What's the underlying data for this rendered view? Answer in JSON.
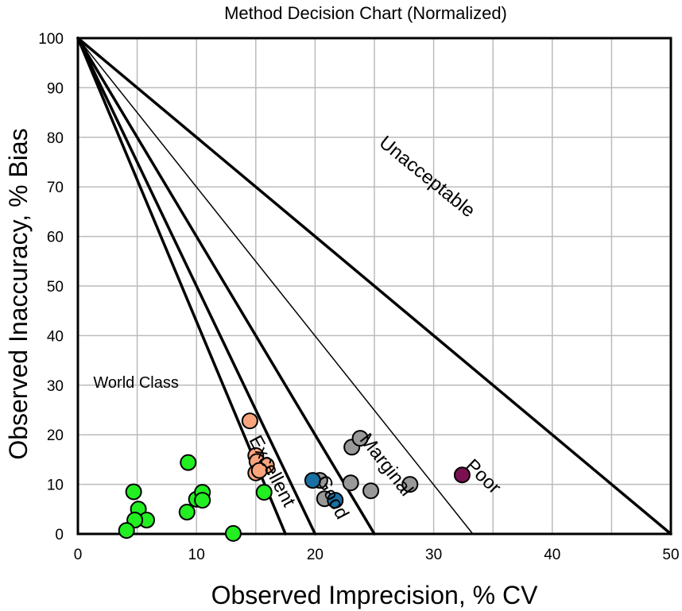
{
  "chart_data": {
    "type": "scatter",
    "title": "Method Decision Chart (Normalized)",
    "xlabel": "Observed Imprecision, % CV",
    "ylabel": "Observed Inaccuracy, % Bias",
    "xlim": [
      0,
      50
    ],
    "ylim": [
      0,
      100
    ],
    "x_ticks": [
      0,
      10,
      20,
      30,
      40,
      50
    ],
    "y_ticks": [
      0,
      10,
      20,
      30,
      40,
      50,
      60,
      70,
      80,
      90,
      100
    ],
    "x_grid_step": 5,
    "y_grid_step": 10,
    "grid": true,
    "boundary_lines": [
      {
        "label": "Excellent",
        "x_intercept": 17.5,
        "y_intercept": 100,
        "weight": "bold"
      },
      {
        "label": "Good",
        "x_intercept": 20,
        "y_intercept": 100,
        "weight": "bold"
      },
      {
        "label": "Marginal",
        "x_intercept": 25,
        "y_intercept": 100,
        "weight": "bold"
      },
      {
        "label": "Poor",
        "x_intercept": 33.3,
        "y_intercept": 100,
        "weight": "thin"
      },
      {
        "label": "Unacceptable",
        "x_intercept": 50,
        "y_intercept": 100,
        "weight": "bold"
      }
    ],
    "zone_labels": [
      {
        "text": "World Class",
        "x": 1.3,
        "y": 29.5,
        "angle": 0
      },
      {
        "text": "Excellent",
        "x": 14.4,
        "y": 19,
        "angle": 62
      },
      {
        "text": "Good",
        "x": 20.1,
        "y": 11,
        "angle": 62
      },
      {
        "text": "Marginal",
        "x": 23.7,
        "y": 19,
        "angle": 52
      },
      {
        "text": "Poor",
        "x": 32.6,
        "y": 13.5,
        "angle": 44
      },
      {
        "text": "Unacceptable",
        "x": 25.3,
        "y": 78.5,
        "angle": 39
      }
    ],
    "series": [
      {
        "color": "#22ee22",
        "points": [
          [
            4.7,
            8.5
          ],
          [
            5.1,
            5.0
          ],
          [
            5.8,
            2.8
          ],
          [
            4.8,
            2.8
          ],
          [
            4.1,
            0.7
          ],
          [
            9.3,
            14.4
          ],
          [
            9.2,
            4.4
          ],
          [
            10.0,
            7.0
          ],
          [
            10.5,
            8.4
          ],
          [
            10.5,
            6.8
          ],
          [
            13.1,
            0.1
          ],
          [
            15.7,
            8.4
          ]
        ]
      },
      {
        "color": "#f8a57e",
        "points": [
          [
            14.5,
            22.8
          ],
          [
            15.0,
            15.8
          ],
          [
            15.1,
            14.6
          ],
          [
            15.9,
            13.8
          ],
          [
            15.0,
            12.3
          ],
          [
            15.3,
            12.8
          ]
        ]
      },
      {
        "color": "#999999",
        "points": [
          [
            20.4,
            10.8
          ],
          [
            20.8,
            7.1
          ],
          [
            23.0,
            10.3
          ],
          [
            23.1,
            17.5
          ],
          [
            23.8,
            19.3
          ],
          [
            24.7,
            8.7
          ],
          [
            28.0,
            10.0
          ]
        ]
      },
      {
        "color": "#1a6fa3",
        "points": [
          [
            19.8,
            10.8
          ],
          [
            21.7,
            6.8
          ]
        ]
      },
      {
        "color": "#7a1050",
        "points": [
          [
            32.4,
            11.9
          ]
        ]
      }
    ]
  }
}
